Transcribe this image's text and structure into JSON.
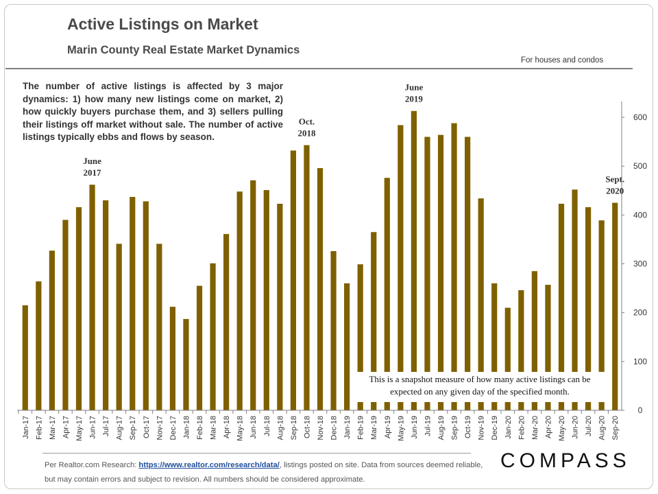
{
  "header": {
    "title": "Active Listings on Market",
    "subtitle": "Marin County Real Estate Market Dynamics",
    "note": "For houses and condos"
  },
  "description": "The number of active listings is affected by 3 major dynamics: 1) how many new listings come on market, 2) how quickly buyers purchase them, and 3) sellers pulling their listings off market without sale. The number of active listings typically ebbs and flows by season.",
  "snapshot_note": "This is a snapshot measure of how many active listings can be expected on any given day of the specified month.",
  "footer": {
    "prefix": "Per Realtor.com Research:",
    "link": "https://www.realtor.com/research/data/",
    "suffix": ", listings posted on site. Data from sources deemed reliable, but may contain errors and subject to revision.  All numbers should be considered approximate."
  },
  "logo": "COMPASS",
  "colors": {
    "bar": "#7f6000",
    "axis": "#7f7f7f",
    "text": "#333333"
  },
  "chart_data": {
    "type": "bar",
    "title": "Active Listings on Market",
    "categories": [
      "Jan-17",
      "Feb-17",
      "Mar-17",
      "Apr-17",
      "May-17",
      "Jun-17",
      "Jul-17",
      "Aug-17",
      "Sep-17",
      "Oct-17",
      "Nov-17",
      "Dec-17",
      "Jan-18",
      "Feb-18",
      "Mar-18",
      "Apr-18",
      "May-18",
      "Jun-18",
      "Jul-18",
      "Aug-18",
      "Sep-18",
      "Oct-18",
      "Nov-18",
      "Dec-18",
      "Jan-19",
      "Feb-19",
      "Mar-19",
      "Apr-19",
      "May-19",
      "Jun-19",
      "Jul-19",
      "Aug-19",
      "Sep-19",
      "Oct-19",
      "Nov-19",
      "Dec-19",
      "Jan-20",
      "Feb-20",
      "Mar-20",
      "Apr-20",
      "May-20",
      "Jun-20",
      "Jul-20",
      "Aug-20",
      "Sep-20"
    ],
    "values": [
      215,
      264,
      327,
      390,
      416,
      462,
      430,
      341,
      437,
      428,
      341,
      212,
      187,
      255,
      301,
      361,
      448,
      471,
      451,
      423,
      532,
      543,
      496,
      326,
      260,
      299,
      365,
      476,
      584,
      613,
      560,
      564,
      588,
      560,
      434,
      260,
      210,
      246,
      285,
      257,
      423,
      452,
      416,
      389,
      425
    ],
    "ylim": [
      0,
      600
    ],
    "yticks": [
      0,
      100,
      200,
      300,
      400,
      500,
      600
    ],
    "y_axis_side": "right",
    "grid": false,
    "annotations": [
      {
        "category": "Jun-17",
        "lines": [
          "June",
          "2017"
        ]
      },
      {
        "category": "Oct-18",
        "lines": [
          "Oct.",
          "2018"
        ]
      },
      {
        "category": "Jun-19",
        "lines": [
          "June",
          "2019"
        ]
      },
      {
        "category": "Sep-20",
        "lines": [
          "Sept.",
          "2020"
        ]
      }
    ]
  }
}
